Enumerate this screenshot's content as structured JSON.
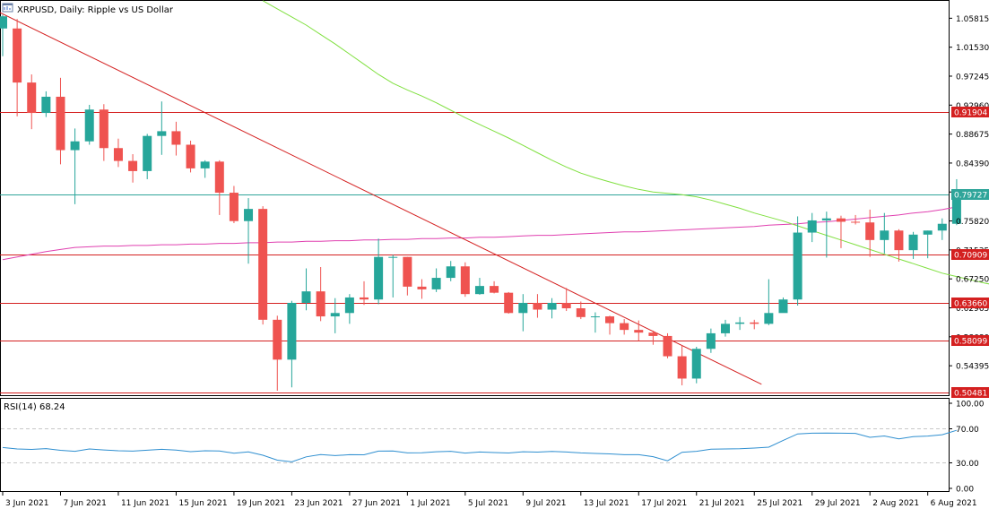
{
  "chart_data": {
    "type": "candlestick",
    "title": "XRPUSD, Daily:  Ripple vs US Dollar",
    "price_axis": {
      "ticks": [
        "1.05815",
        "1.01530",
        "0.97245",
        "0.92960",
        "0.88675",
        "0.84390",
        "0.80105",
        "0.75820",
        "0.71535",
        "0.67250",
        "0.62965",
        "0.58680",
        "0.54395"
      ],
      "ylim": [
        0.5004,
        1.0838
      ]
    },
    "x_ticks": [
      "3 Jun 2021",
      "7 Jun 2021",
      "11 Jun 2021",
      "15 Jun 2021",
      "19 Jun 2021",
      "23 Jun 2021",
      "27 Jun 2021",
      "1 Jul 2021",
      "5 Jul 2021",
      "9 Jul 2021",
      "13 Jul 2021",
      "17 Jul 2021",
      "21 Jul 2021",
      "25 Jul 2021",
      "29 Jul 2021",
      "2 Aug 2021",
      "6 Aug 2021"
    ],
    "x_tick_bars": [
      0,
      4,
      8,
      12,
      16,
      20,
      24,
      28,
      32,
      36,
      40,
      44,
      48,
      52,
      56,
      60,
      64
    ],
    "candles": [
      {
        "o": 1.043,
        "h": 1.063,
        "l": 1.002,
        "c": 1.061
      },
      {
        "o": 1.043,
        "h": 1.057,
        "l": 0.913,
        "c": 0.963
      },
      {
        "o": 0.963,
        "h": 0.975,
        "l": 0.894,
        "c": 0.918
      },
      {
        "o": 0.918,
        "h": 0.95,
        "l": 0.912,
        "c": 0.942
      },
      {
        "o": 0.942,
        "h": 0.97,
        "l": 0.842,
        "c": 0.863
      },
      {
        "o": 0.863,
        "h": 0.895,
        "l": 0.783,
        "c": 0.876
      },
      {
        "o": 0.876,
        "h": 0.93,
        "l": 0.871,
        "c": 0.923
      },
      {
        "o": 0.923,
        "h": 0.931,
        "l": 0.847,
        "c": 0.866
      },
      {
        "o": 0.866,
        "h": 0.88,
        "l": 0.838,
        "c": 0.847
      },
      {
        "o": 0.847,
        "h": 0.857,
        "l": 0.815,
        "c": 0.832
      },
      {
        "o": 0.832,
        "h": 0.887,
        "l": 0.82,
        "c": 0.884
      },
      {
        "o": 0.884,
        "h": 0.935,
        "l": 0.856,
        "c": 0.891
      },
      {
        "o": 0.891,
        "h": 0.905,
        "l": 0.855,
        "c": 0.871
      },
      {
        "o": 0.871,
        "h": 0.877,
        "l": 0.83,
        "c": 0.836
      },
      {
        "o": 0.836,
        "h": 0.848,
        "l": 0.822,
        "c": 0.846
      },
      {
        "o": 0.846,
        "h": 0.848,
        "l": 0.767,
        "c": 0.8
      },
      {
        "o": 0.8,
        "h": 0.81,
        "l": 0.755,
        "c": 0.758
      },
      {
        "o": 0.758,
        "h": 0.792,
        "l": 0.695,
        "c": 0.776
      },
      {
        "o": 0.776,
        "h": 0.78,
        "l": 0.605,
        "c": 0.612
      },
      {
        "o": 0.612,
        "h": 0.618,
        "l": 0.507,
        "c": 0.553
      },
      {
        "o": 0.553,
        "h": 0.64,
        "l": 0.512,
        "c": 0.637
      },
      {
        "o": 0.637,
        "h": 0.688,
        "l": 0.626,
        "c": 0.654
      },
      {
        "o": 0.654,
        "h": 0.69,
        "l": 0.61,
        "c": 0.617
      },
      {
        "o": 0.617,
        "h": 0.644,
        "l": 0.592,
        "c": 0.622
      },
      {
        "o": 0.622,
        "h": 0.65,
        "l": 0.606,
        "c": 0.645
      },
      {
        "o": 0.645,
        "h": 0.669,
        "l": 0.634,
        "c": 0.642
      },
      {
        "o": 0.642,
        "h": 0.732,
        "l": 0.635,
        "c": 0.705
      },
      {
        "o": 0.705,
        "h": 0.708,
        "l": 0.645,
        "c": 0.705
      },
      {
        "o": 0.705,
        "h": 0.705,
        "l": 0.648,
        "c": 0.661
      },
      {
        "o": 0.661,
        "h": 0.672,
        "l": 0.643,
        "c": 0.657
      },
      {
        "o": 0.657,
        "h": 0.688,
        "l": 0.653,
        "c": 0.674
      },
      {
        "o": 0.674,
        "h": 0.699,
        "l": 0.669,
        "c": 0.691
      },
      {
        "o": 0.691,
        "h": 0.697,
        "l": 0.646,
        "c": 0.65
      },
      {
        "o": 0.65,
        "h": 0.674,
        "l": 0.649,
        "c": 0.662
      },
      {
        "o": 0.662,
        "h": 0.669,
        "l": 0.651,
        "c": 0.652
      },
      {
        "o": 0.652,
        "h": 0.653,
        "l": 0.621,
        "c": 0.622
      },
      {
        "o": 0.622,
        "h": 0.65,
        "l": 0.595,
        "c": 0.637
      },
      {
        "o": 0.637,
        "h": 0.65,
        "l": 0.615,
        "c": 0.627
      },
      {
        "o": 0.627,
        "h": 0.644,
        "l": 0.614,
        "c": 0.637
      },
      {
        "o": 0.637,
        "h": 0.659,
        "l": 0.625,
        "c": 0.629
      },
      {
        "o": 0.629,
        "h": 0.639,
        "l": 0.613,
        "c": 0.616
      },
      {
        "o": 0.616,
        "h": 0.623,
        "l": 0.593,
        "c": 0.617
      },
      {
        "o": 0.617,
        "h": 0.618,
        "l": 0.59,
        "c": 0.607
      },
      {
        "o": 0.607,
        "h": 0.613,
        "l": 0.59,
        "c": 0.597
      },
      {
        "o": 0.597,
        "h": 0.611,
        "l": 0.581,
        "c": 0.593
      },
      {
        "o": 0.593,
        "h": 0.596,
        "l": 0.575,
        "c": 0.588
      },
      {
        "o": 0.588,
        "h": 0.592,
        "l": 0.555,
        "c": 0.558
      },
      {
        "o": 0.558,
        "h": 0.574,
        "l": 0.515,
        "c": 0.525
      },
      {
        "o": 0.525,
        "h": 0.572,
        "l": 0.518,
        "c": 0.569
      },
      {
        "o": 0.569,
        "h": 0.599,
        "l": 0.563,
        "c": 0.592
      },
      {
        "o": 0.592,
        "h": 0.612,
        "l": 0.587,
        "c": 0.606
      },
      {
        "o": 0.606,
        "h": 0.616,
        "l": 0.597,
        "c": 0.608
      },
      {
        "o": 0.608,
        "h": 0.612,
        "l": 0.598,
        "c": 0.606
      },
      {
        "o": 0.606,
        "h": 0.672,
        "l": 0.604,
        "c": 0.622
      },
      {
        "o": 0.622,
        "h": 0.645,
        "l": 0.623,
        "c": 0.642
      },
      {
        "o": 0.642,
        "h": 0.765,
        "l": 0.633,
        "c": 0.741
      },
      {
        "o": 0.741,
        "h": 0.77,
        "l": 0.727,
        "c": 0.759
      },
      {
        "o": 0.759,
        "h": 0.772,
        "l": 0.704,
        "c": 0.762
      },
      {
        "o": 0.762,
        "h": 0.766,
        "l": 0.718,
        "c": 0.757
      },
      {
        "o": 0.757,
        "h": 0.767,
        "l": 0.753,
        "c": 0.756
      },
      {
        "o": 0.756,
        "h": 0.775,
        "l": 0.705,
        "c": 0.73
      },
      {
        "o": 0.73,
        "h": 0.77,
        "l": 0.71,
        "c": 0.744
      },
      {
        "o": 0.744,
        "h": 0.746,
        "l": 0.698,
        "c": 0.715
      },
      {
        "o": 0.715,
        "h": 0.742,
        "l": 0.702,
        "c": 0.738
      },
      {
        "o": 0.738,
        "h": 0.744,
        "l": 0.703,
        "c": 0.744
      },
      {
        "o": 0.744,
        "h": 0.762,
        "l": 0.73,
        "c": 0.754
      },
      {
        "o": 0.754,
        "h": 0.82,
        "l": 0.752,
        "c": 0.797
      }
    ],
    "ma_long": {
      "start_bar": 0,
      "end_bar": 66,
      "values": [
        0.701,
        0.705,
        0.709,
        0.713,
        0.716,
        0.719,
        0.72,
        0.721,
        0.721,
        0.722,
        0.722,
        0.723,
        0.723,
        0.724,
        0.724,
        0.725,
        0.725,
        0.726,
        0.726,
        0.727,
        0.727,
        0.728,
        0.728,
        0.729,
        0.729,
        0.73,
        0.73,
        0.731,
        0.731,
        0.732,
        0.732,
        0.733,
        0.733,
        0.734,
        0.734,
        0.735,
        0.736,
        0.737,
        0.737,
        0.738,
        0.739,
        0.74,
        0.741,
        0.742,
        0.742,
        0.743,
        0.744,
        0.745,
        0.746,
        0.747,
        0.748,
        0.749,
        0.75,
        0.752,
        0.753,
        0.754,
        0.756,
        0.757,
        0.759,
        0.761,
        0.763,
        0.765,
        0.767,
        0.77,
        0.772,
        0.775,
        0.779
      ]
    },
    "ma_short": {
      "start_bar": 18,
      "end_bar": 66,
      "values": [
        1.084,
        1.072,
        1.06,
        1.048,
        1.034,
        1.02,
        1.005,
        0.99,
        0.975,
        0.962,
        0.952,
        0.943,
        0.933,
        0.922,
        0.911,
        0.901,
        0.891,
        0.881,
        0.87,
        0.859,
        0.848,
        0.838,
        0.829,
        0.822,
        0.816,
        0.81,
        0.805,
        0.801,
        0.799,
        0.797,
        0.794,
        0.789,
        0.783,
        0.777,
        0.77,
        0.764,
        0.758,
        0.751,
        0.744,
        0.737,
        0.73,
        0.723,
        0.716,
        0.709,
        0.702,
        0.695,
        0.688,
        0.681,
        0.676,
        0.671,
        0.666,
        0.662
      ]
    },
    "trendline": {
      "x1": -1,
      "y1": 1.075,
      "x2": 52.5,
      "y2": 0.5165
    },
    "horizontal_levels": [
      {
        "value": 0.91904,
        "label": "0.91904",
        "color": "#d42020"
      },
      {
        "value": 0.79727,
        "label": "0.79727",
        "color": "#2fa59a"
      },
      {
        "value": 0.70909,
        "label": "0.70909",
        "color": "#d42020"
      },
      {
        "value": 0.6366,
        "label": "0.63660",
        "color": "#d42020"
      },
      {
        "value": 0.58099,
        "label": "0.58099",
        "color": "#d42020"
      },
      {
        "value": 0.50481,
        "label": "0.50481",
        "color": "#d42020"
      }
    ],
    "rsi": {
      "label": "RSI(14) 68.24",
      "ticks": [
        "100.00",
        "70.00",
        "30.00",
        "0.00"
      ],
      "levels": [
        70,
        30
      ],
      "ylim": [
        0,
        100
      ],
      "values": [
        48.0,
        46.3,
        45.8,
        46.7,
        44.7,
        43.6,
        46.3,
        45.2,
        44.2,
        43.8,
        44.8,
        45.9,
        45.0,
        43.2,
        44.2,
        43.9,
        41.4,
        42.8,
        38.9,
        33.2,
        31.2,
        37.1,
        39.8,
        38.5,
        39.6,
        39.5,
        43.8,
        44.0,
        41.7,
        41.9,
        43.1,
        43.6,
        41.5,
        42.7,
        42.1,
        41.6,
        43.1,
        42.6,
        43.4,
        42.7,
        41.7,
        41.1,
        40.5,
        39.6,
        39.6,
        37.3,
        32.4,
        42.4,
        43.6,
        46.0,
        46.3,
        46.5,
        47.4,
        48.4,
        56.4,
        64.0,
        64.8,
        65.1,
        64.8,
        64.6,
        60.0,
        61.6,
        58.2,
        60.8,
        61.5,
        63.0,
        68.2
      ]
    }
  },
  "colors": {
    "bull": "#26a69a",
    "bear": "#ef5350",
    "ma_long": "#e040b0",
    "ma_short": "#80e040",
    "trendline": "#d42020",
    "rsi_line": "#2f8fd0",
    "grid": "#c8c8c8"
  },
  "icons": {
    "title": "chart-window-icon"
  }
}
